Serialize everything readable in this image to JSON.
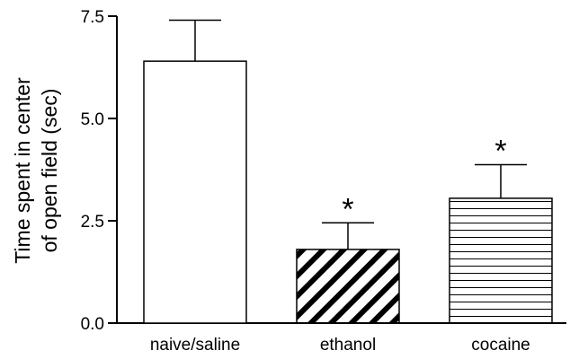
{
  "chart_data": {
    "type": "bar",
    "categories": [
      "naive/saline",
      "ethanol",
      "cocaine"
    ],
    "values": [
      6.4,
      1.8,
      3.05
    ],
    "errors": [
      1.0,
      0.65,
      0.82
    ],
    "fills": [
      "none",
      "diagonal-hatch",
      "horizontal-hatch"
    ],
    "significance": [
      "",
      "*",
      "*"
    ],
    "ylabel_lines": [
      "Time spent in center",
      "of open field (sec)"
    ],
    "xlabel": "",
    "title": "",
    "ylim": [
      0,
      7.5
    ],
    "yticks": [
      0.0,
      2.5,
      5.0,
      7.5
    ],
    "ytick_labels": [
      "0.0",
      "2.5",
      "5.0",
      "7.5"
    ],
    "grid": false,
    "colors": {
      "stroke": "#000000",
      "background": "#ffffff"
    }
  }
}
